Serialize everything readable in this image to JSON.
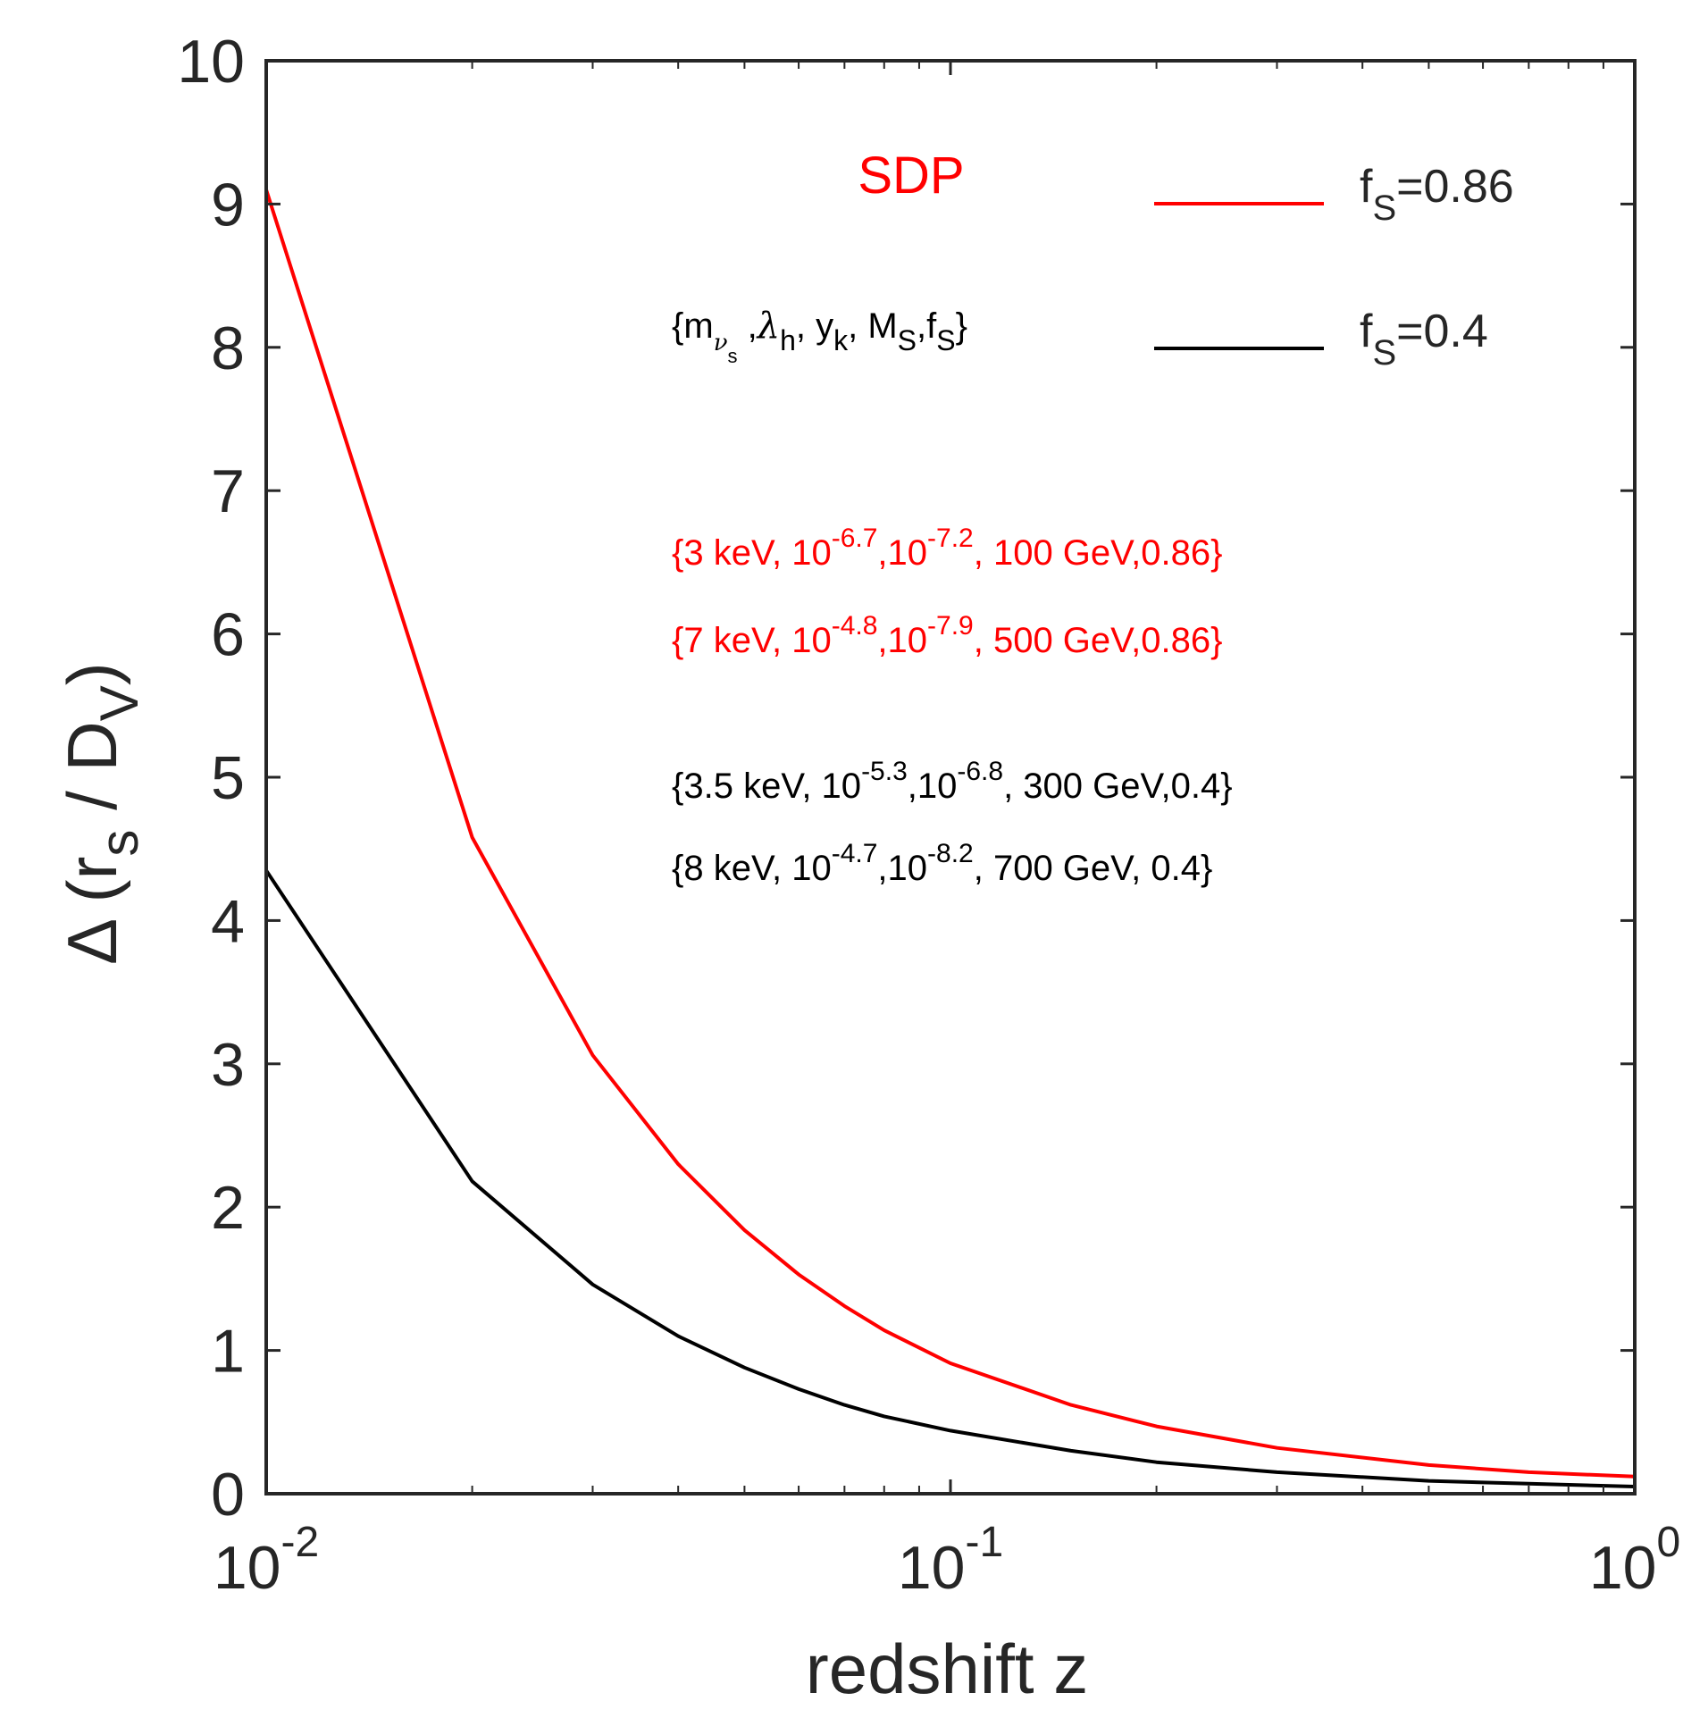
{
  "chart_data": {
    "type": "line",
    "xscale": "log",
    "xlim": [
      0.01,
      1
    ],
    "ylim": [
      0,
      10
    ],
    "xlabel": "redshift z",
    "ylabel": "Δ (r_s / D_V)",
    "x_ticks": [
      {
        "value": 0.01,
        "base": "10",
        "exp": "-2"
      },
      {
        "value": 0.1,
        "base": "10",
        "exp": "-1"
      },
      {
        "value": 1,
        "base": "10",
        "exp": "0"
      }
    ],
    "y_ticks": [
      0,
      1,
      2,
      3,
      4,
      5,
      6,
      7,
      8,
      9,
      10
    ],
    "title": "SDP",
    "header": "{m_νs, λh, yk, MS, fS}",
    "series": [
      {
        "name": "f_S=0.86",
        "color": "#ff0000",
        "x": [
          0.01,
          0.02,
          0.03,
          0.04,
          0.05,
          0.06,
          0.07,
          0.08,
          0.1,
          0.15,
          0.2,
          0.3,
          0.5,
          0.7,
          1.0
        ],
        "y": [
          9.1,
          4.58,
          3.06,
          2.3,
          1.84,
          1.53,
          1.31,
          1.14,
          0.91,
          0.62,
          0.47,
          0.32,
          0.2,
          0.15,
          0.12
        ]
      },
      {
        "name": "f_S=0.4",
        "color": "#000000",
        "x": [
          0.01,
          0.02,
          0.03,
          0.04,
          0.05,
          0.06,
          0.07,
          0.08,
          0.1,
          0.15,
          0.2,
          0.3,
          0.5,
          0.7,
          1.0
        ],
        "y": [
          4.35,
          2.18,
          1.46,
          1.1,
          0.88,
          0.73,
          0.62,
          0.54,
          0.44,
          0.3,
          0.22,
          0.15,
          0.09,
          0.07,
          0.05
        ]
      }
    ],
    "annotations": [
      "{3 keV, 10^-6.7,10^-7.2, 100 GeV,0.86}",
      "{7 keV, 10^-4.8,10^-7.9, 500 GeV,0.86}",
      "{3.5 keV, 10^-5.3,10^-6.8, 300 GeV,0.4}",
      "{8  keV, 10^-4.7,10^-8.2, 700 GeV, 0.4}"
    ],
    "legend": "top-right",
    "grid": false
  },
  "labels": {
    "xlabel": "redshift z",
    "title": "SDP",
    "legend_red_base": "f",
    "legend_red_sub": "S",
    "legend_red_rest": "=0.86",
    "legend_black_base": "f",
    "legend_black_sub": "S",
    "legend_black_rest": "=0.4",
    "ylabel_delta": "Δ (r",
    "ylabel_s": "s",
    "ylabel_mid": " / D",
    "ylabel_v": "V",
    "ylabel_close": ")",
    "hdr_open": "{m",
    "hdr_nu": "ν",
    "hdr_nu_s": "s",
    "hdr_comma1": " ,",
    "hdr_lambda": "λ",
    "hdr_h": "h",
    "hdr_y": ", y",
    "hdr_k": "k",
    "hdr_M": ", M",
    "hdr_MS": "S",
    "hdr_f": ",f",
    "hdr_fS": "S",
    "hdr_close": "}",
    "a1_p1": "{3 keV, 10",
    "a1_e1": "-6.7",
    "a1_p2": ",10",
    "a1_e2": "-7.2",
    "a1_p3": ", 100 GeV,0.86}",
    "a2_p1": "{7 keV, 10",
    "a2_e1": "-4.8",
    "a2_p2": ",10",
    "a2_e2": "-7.9",
    "a2_p3": ", 500 GeV,0.86}",
    "a3_p1": "{3.5 keV, 10",
    "a3_e1": "-5.3",
    "a3_p2": ",10",
    "a3_e2": "-6.8",
    "a3_p3": ", 300 GeV,0.4}",
    "a4_p1": "{8  keV, 10",
    "a4_e1": "-4.7",
    "a4_p2": ",10",
    "a4_e2": "-8.2",
    "a4_p3": ", 700 GeV, 0.4}"
  }
}
